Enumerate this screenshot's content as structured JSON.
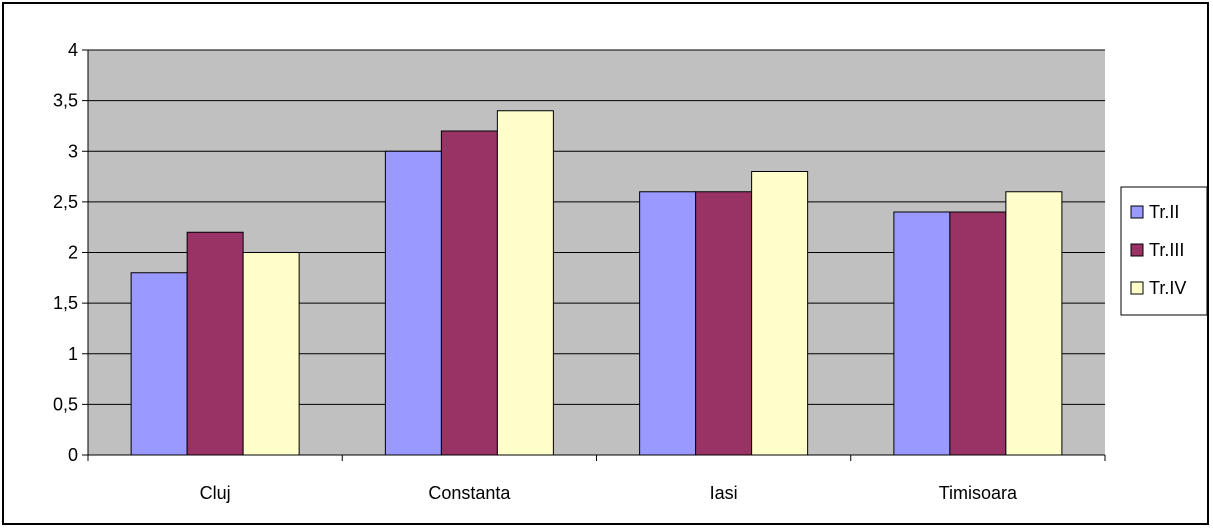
{
  "chart_data": {
    "type": "bar",
    "title": "",
    "xlabel": "",
    "ylabel": "",
    "categories": [
      "Cluj",
      "Constanta",
      "Iasi",
      "Timisoara"
    ],
    "series": [
      {
        "name": "Tr.II",
        "values": [
          1.8,
          3.0,
          2.6,
          2.4
        ],
        "color": "#9999ff"
      },
      {
        "name": "Tr.III",
        "values": [
          2.2,
          3.2,
          2.6,
          2.4
        ],
        "color": "#993366"
      },
      {
        "name": "Tr.IV",
        "values": [
          2.0,
          3.4,
          2.8,
          2.6
        ],
        "color": "#ffffcc"
      }
    ],
    "ylim": [
      0,
      4
    ],
    "yticks": [
      0,
      0.5,
      1,
      1.5,
      2,
      2.5,
      3,
      3.5,
      4
    ],
    "ytick_labels": [
      "0",
      "0,5",
      "1",
      "1,5",
      "2",
      "2,5",
      "3",
      "3,5",
      "4"
    ],
    "grid": true,
    "plot_background": "#c0c0c0",
    "legend_position": "right"
  }
}
